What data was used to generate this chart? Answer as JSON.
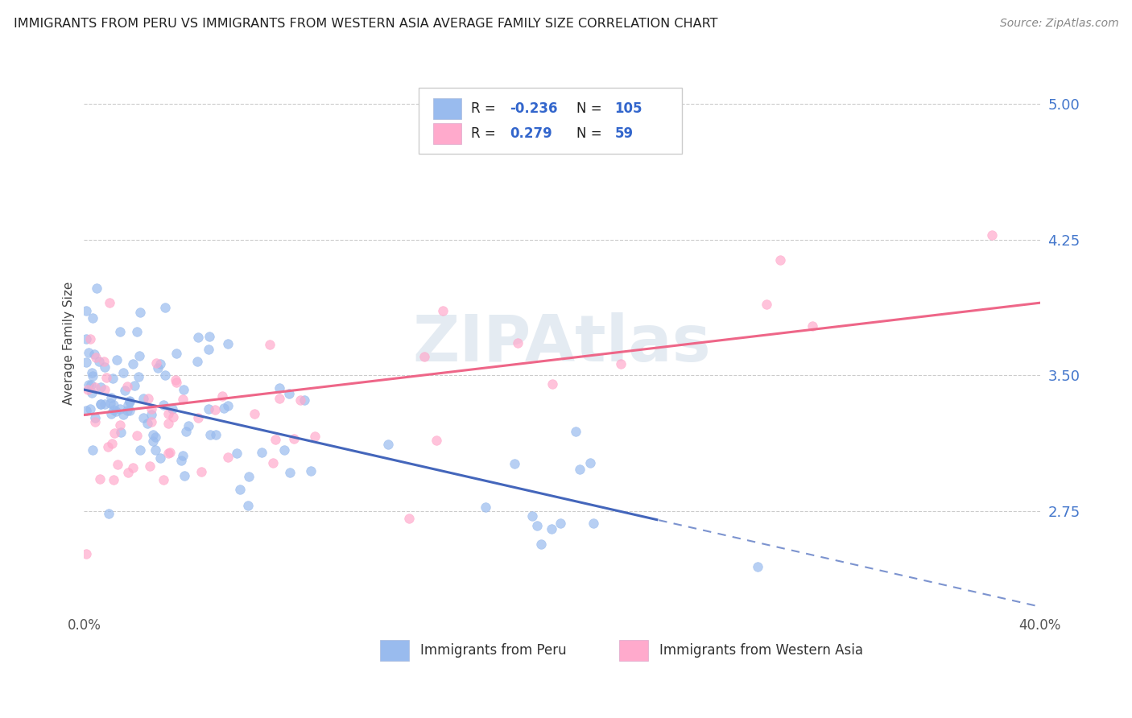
{
  "title": "IMMIGRANTS FROM PERU VS IMMIGRANTS FROM WESTERN ASIA AVERAGE FAMILY SIZE CORRELATION CHART",
  "source": "Source: ZipAtlas.com",
  "ylabel": "Average Family Size",
  "yticks": [
    2.75,
    3.5,
    4.25,
    5.0
  ],
  "xlim": [
    0.0,
    0.4
  ],
  "ylim": [
    2.2,
    5.15
  ],
  "peru_color": "#99bbee",
  "western_asia_color": "#ffaacc",
  "peru_line_color": "#4466bb",
  "wa_line_color": "#ee6688",
  "watermark": "ZIPAtlas",
  "peru_R": -0.236,
  "peru_N": 105,
  "western_asia_R": 0.279,
  "western_asia_N": 59,
  "peru_line_y0": 3.42,
  "peru_line_slope": -3.0,
  "wa_line_y0": 3.28,
  "wa_line_slope": 1.55,
  "peru_dash_start": 0.24,
  "title_fontsize": 11.5,
  "source_fontsize": 10,
  "ylabel_fontsize": 11,
  "ytick_fontsize": 13,
  "xtick_fontsize": 12,
  "legend_fontsize": 12,
  "seed": 12345
}
